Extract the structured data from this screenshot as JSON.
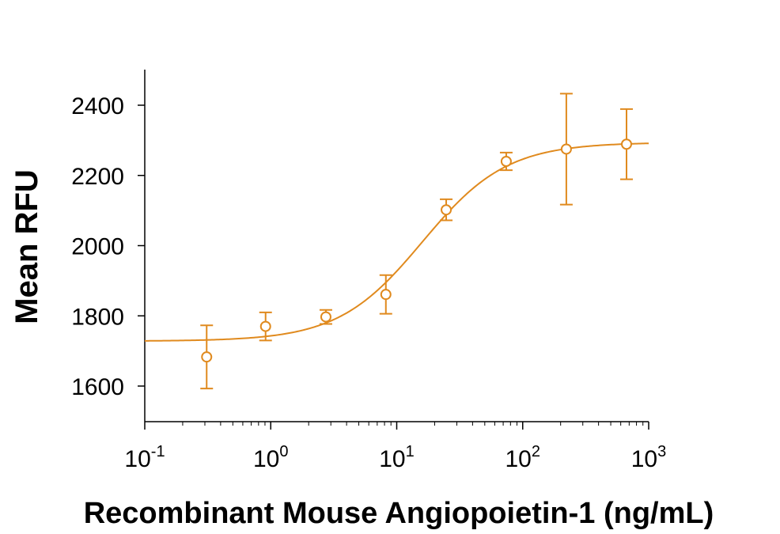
{
  "chart_data": {
    "type": "scatter",
    "xlabel": "Recombinant Mouse Angiopoietin-1 (ng/mL)",
    "ylabel": "Mean RFU",
    "x_scale": "log",
    "xlim": [
      0.1,
      1000
    ],
    "ylim": [
      1500,
      2500
    ],
    "x_ticks": [
      {
        "value": 0.1,
        "base": "10",
        "exp": "-1"
      },
      {
        "value": 1,
        "base": "10",
        "exp": "0"
      },
      {
        "value": 10,
        "base": "10",
        "exp": "1"
      },
      {
        "value": 100,
        "base": "10",
        "exp": "2"
      },
      {
        "value": 1000,
        "base": "10",
        "exp": "3"
      }
    ],
    "y_ticks": [
      1600,
      1800,
      2000,
      2200,
      2400
    ],
    "grid": false,
    "legend": "none",
    "color": "#E08A1E",
    "series": [
      {
        "x": [
          0.31,
          0.91,
          2.74,
          8.2,
          24.7,
          74,
          222,
          667
        ],
        "y": [
          1683,
          1770,
          1797,
          1861,
          2102,
          2240,
          2275,
          2289
        ],
        "error": [
          90,
          40,
          20,
          55,
          30,
          25,
          158,
          100
        ]
      }
    ],
    "fit": {
      "model": "4PL",
      "bottom": 1728,
      "top": 2294,
      "ec50": 16,
      "hill": 1.3
    }
  }
}
